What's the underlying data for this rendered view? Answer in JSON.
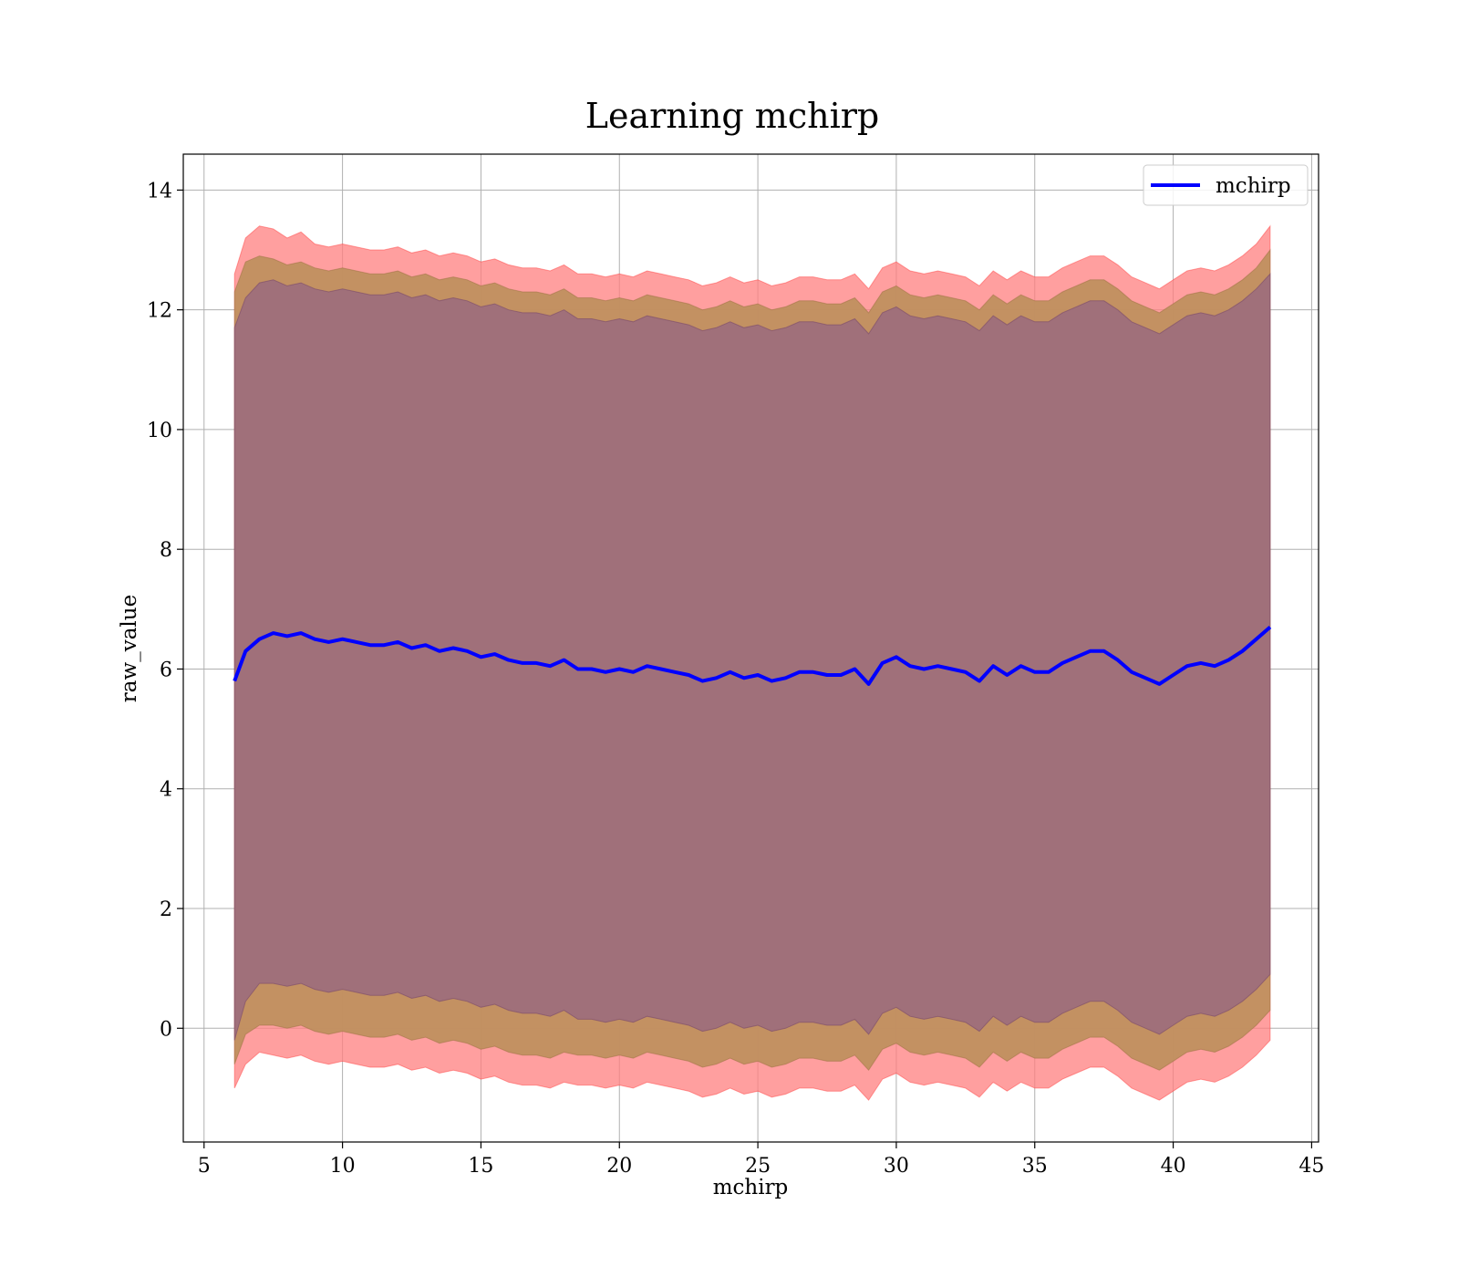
{
  "chart_data": {
    "type": "area",
    "title": "Learning mchirp",
    "xlabel": "mchirp",
    "ylabel": "raw_value",
    "xlim": [
      4.25,
      45.25
    ],
    "ylim": [
      -1.9,
      14.6
    ],
    "xticks": [
      5,
      10,
      15,
      20,
      25,
      30,
      35,
      40,
      45
    ],
    "yticks": [
      0,
      2,
      4,
      6,
      8,
      10,
      12,
      14
    ],
    "grid": true,
    "legend": {
      "placement": "top-right",
      "entries": [
        "mchirp"
      ]
    },
    "colors": {
      "line": "#0000ff",
      "band_outer": "#ff7f7f",
      "band_middle": "#c0905f",
      "band_inner": "#a0707a"
    },
    "x_range": [
      6.1,
      43.5
    ],
    "mean_series": {
      "name": "mchirp",
      "x": [
        6.1,
        6.5,
        7,
        7.5,
        8,
        8.5,
        9,
        9.5,
        10,
        10.5,
        11,
        11.5,
        12,
        12.5,
        13,
        13.5,
        14,
        14.5,
        15,
        15.5,
        16,
        16.5,
        17,
        17.5,
        18,
        18.5,
        19,
        19.5,
        20,
        20.5,
        21,
        21.5,
        22,
        22.5,
        23,
        23.5,
        24,
        24.5,
        25,
        25.5,
        26,
        26.5,
        27,
        27.5,
        28,
        28.5,
        29,
        29.5,
        30,
        30.5,
        31,
        31.5,
        32,
        32.5,
        33,
        33.5,
        34,
        34.5,
        35,
        35.5,
        36,
        36.5,
        37,
        37.5,
        38,
        38.5,
        39,
        39.5,
        40,
        40.5,
        41,
        41.5,
        42,
        42.5,
        43,
        43.5
      ],
      "y": [
        5.8,
        6.3,
        6.5,
        6.6,
        6.55,
        6.6,
        6.5,
        6.45,
        6.5,
        6.45,
        6.4,
        6.4,
        6.45,
        6.35,
        6.4,
        6.3,
        6.35,
        6.3,
        6.2,
        6.25,
        6.15,
        6.1,
        6.1,
        6.05,
        6.15,
        6.0,
        6.0,
        5.95,
        6.0,
        5.95,
        6.05,
        6.0,
        5.95,
        5.9,
        5.8,
        5.85,
        5.95,
        5.85,
        5.9,
        5.8,
        5.85,
        5.95,
        5.95,
        5.9,
        5.9,
        6.0,
        5.75,
        6.1,
        6.2,
        6.05,
        6.0,
        6.05,
        6.0,
        5.95,
        5.8,
        6.05,
        5.9,
        6.05,
        5.95,
        5.95,
        6.1,
        6.2,
        6.3,
        6.3,
        6.15,
        5.95,
        5.85,
        5.75,
        5.9,
        6.05,
        6.1,
        6.05,
        6.15,
        6.3,
        6.5,
        6.7
      ]
    },
    "band_outer": {
      "upper": [
        12.6,
        13.2,
        13.4,
        13.35,
        13.2,
        13.3,
        13.1,
        13.05,
        13.1,
        13.05,
        13.0,
        13.0,
        13.05,
        12.95,
        13.0,
        12.9,
        12.95,
        12.9,
        12.8,
        12.85,
        12.75,
        12.7,
        12.7,
        12.65,
        12.75,
        12.6,
        12.6,
        12.55,
        12.6,
        12.55,
        12.65,
        12.6,
        12.55,
        12.5,
        12.4,
        12.45,
        12.55,
        12.45,
        12.5,
        12.4,
        12.45,
        12.55,
        12.55,
        12.5,
        12.5,
        12.6,
        12.35,
        12.7,
        12.8,
        12.65,
        12.6,
        12.65,
        12.6,
        12.55,
        12.4,
        12.65,
        12.5,
        12.65,
        12.55,
        12.55,
        12.7,
        12.8,
        12.9,
        12.9,
        12.75,
        12.55,
        12.45,
        12.35,
        12.5,
        12.65,
        12.7,
        12.65,
        12.75,
        12.9,
        13.1,
        13.4
      ],
      "lower": [
        -1.0,
        -0.6,
        -0.4,
        -0.45,
        -0.5,
        -0.45,
        -0.55,
        -0.6,
        -0.55,
        -0.6,
        -0.65,
        -0.65,
        -0.6,
        -0.7,
        -0.65,
        -0.75,
        -0.7,
        -0.75,
        -0.85,
        -0.8,
        -0.9,
        -0.95,
        -0.95,
        -1.0,
        -0.9,
        -0.95,
        -0.95,
        -1.0,
        -0.95,
        -1.0,
        -0.9,
        -0.95,
        -1.0,
        -1.05,
        -1.15,
        -1.1,
        -1.0,
        -1.1,
        -1.05,
        -1.15,
        -1.1,
        -1.0,
        -1.0,
        -1.05,
        -1.05,
        -0.95,
        -1.2,
        -0.85,
        -0.75,
        -0.9,
        -0.95,
        -0.9,
        -0.95,
        -1.0,
        -1.15,
        -0.9,
        -1.05,
        -0.9,
        -1.0,
        -1.0,
        -0.85,
        -0.75,
        -0.65,
        -0.65,
        -0.8,
        -1.0,
        -1.1,
        -1.2,
        -1.05,
        -0.9,
        -0.85,
        -0.9,
        -0.8,
        -0.65,
        -0.45,
        -0.2
      ]
    },
    "band_middle": {
      "upper": [
        12.3,
        12.8,
        12.9,
        12.85,
        12.75,
        12.8,
        12.7,
        12.65,
        12.7,
        12.65,
        12.6,
        12.6,
        12.65,
        12.55,
        12.6,
        12.5,
        12.55,
        12.5,
        12.4,
        12.45,
        12.35,
        12.3,
        12.3,
        12.25,
        12.35,
        12.2,
        12.2,
        12.15,
        12.2,
        12.15,
        12.25,
        12.2,
        12.15,
        12.1,
        12.0,
        12.05,
        12.15,
        12.05,
        12.1,
        12.0,
        12.05,
        12.15,
        12.15,
        12.1,
        12.1,
        12.2,
        11.95,
        12.3,
        12.4,
        12.25,
        12.2,
        12.25,
        12.2,
        12.15,
        12.0,
        12.25,
        12.1,
        12.25,
        12.15,
        12.15,
        12.3,
        12.4,
        12.5,
        12.5,
        12.35,
        12.15,
        12.05,
        11.95,
        12.1,
        12.25,
        12.3,
        12.25,
        12.35,
        12.5,
        12.7,
        13.0
      ],
      "lower": [
        -0.6,
        -0.1,
        0.05,
        0.05,
        0.0,
        0.05,
        -0.05,
        -0.1,
        -0.05,
        -0.1,
        -0.15,
        -0.15,
        -0.1,
        -0.2,
        -0.15,
        -0.25,
        -0.2,
        -0.25,
        -0.35,
        -0.3,
        -0.4,
        -0.45,
        -0.45,
        -0.5,
        -0.4,
        -0.45,
        -0.45,
        -0.5,
        -0.45,
        -0.5,
        -0.4,
        -0.45,
        -0.5,
        -0.55,
        -0.65,
        -0.6,
        -0.5,
        -0.6,
        -0.55,
        -0.65,
        -0.6,
        -0.5,
        -0.5,
        -0.55,
        -0.55,
        -0.45,
        -0.7,
        -0.35,
        -0.25,
        -0.4,
        -0.45,
        -0.4,
        -0.45,
        -0.5,
        -0.65,
        -0.4,
        -0.55,
        -0.4,
        -0.5,
        -0.5,
        -0.35,
        -0.25,
        -0.15,
        -0.15,
        -0.3,
        -0.5,
        -0.6,
        -0.7,
        -0.55,
        -0.4,
        -0.35,
        -0.4,
        -0.3,
        -0.15,
        0.05,
        0.3
      ]
    },
    "band_inner": {
      "upper": [
        11.7,
        12.2,
        12.45,
        12.5,
        12.4,
        12.45,
        12.35,
        12.3,
        12.35,
        12.3,
        12.25,
        12.25,
        12.3,
        12.2,
        12.25,
        12.15,
        12.2,
        12.15,
        12.05,
        12.1,
        12.0,
        11.95,
        11.95,
        11.9,
        12.0,
        11.85,
        11.85,
        11.8,
        11.85,
        11.8,
        11.9,
        11.85,
        11.8,
        11.75,
        11.65,
        11.7,
        11.8,
        11.7,
        11.75,
        11.65,
        11.7,
        11.8,
        11.8,
        11.75,
        11.75,
        11.85,
        11.6,
        11.95,
        12.05,
        11.9,
        11.85,
        11.9,
        11.85,
        11.8,
        11.65,
        11.9,
        11.75,
        11.9,
        11.8,
        11.8,
        11.95,
        12.05,
        12.15,
        12.15,
        12.0,
        11.8,
        11.7,
        11.6,
        11.75,
        11.9,
        11.95,
        11.9,
        12.0,
        12.15,
        12.35,
        12.6
      ],
      "lower": [
        -0.2,
        0.45,
        0.75,
        0.75,
        0.7,
        0.75,
        0.65,
        0.6,
        0.65,
        0.6,
        0.55,
        0.55,
        0.6,
        0.5,
        0.55,
        0.45,
        0.5,
        0.45,
        0.35,
        0.4,
        0.3,
        0.25,
        0.25,
        0.2,
        0.3,
        0.15,
        0.15,
        0.1,
        0.15,
        0.1,
        0.2,
        0.15,
        0.1,
        0.05,
        -0.05,
        0.0,
        0.1,
        0.0,
        0.05,
        -0.05,
        0.0,
        0.1,
        0.1,
        0.05,
        0.05,
        0.15,
        -0.1,
        0.25,
        0.35,
        0.2,
        0.15,
        0.2,
        0.15,
        0.1,
        -0.05,
        0.2,
        0.05,
        0.2,
        0.1,
        0.1,
        0.25,
        0.35,
        0.45,
        0.45,
        0.3,
        0.1,
        0.0,
        -0.1,
        0.05,
        0.2,
        0.25,
        0.2,
        0.3,
        0.45,
        0.65,
        0.9
      ]
    }
  }
}
